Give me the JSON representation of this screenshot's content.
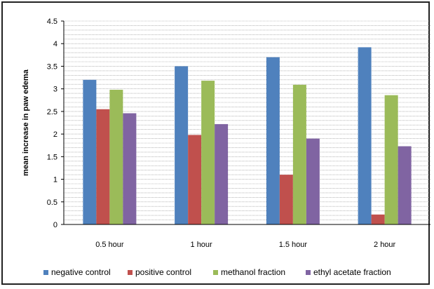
{
  "chart_data": {
    "type": "bar",
    "title": "",
    "xlabel": "",
    "ylabel": "mean increase in paw edema",
    "ylim": [
      0,
      4.5
    ],
    "yticks": [
      "0",
      "0.5",
      "1",
      "1.5",
      "2",
      "2.5",
      "3",
      "3.5",
      "4",
      "4.5"
    ],
    "grid": true,
    "legend": "bottom",
    "categories": [
      "0.5 hour",
      "1 hour",
      "1.5 hour",
      "2 hour"
    ],
    "series": [
      {
        "name": "negative control",
        "color": "#4f81bd",
        "values": [
          3.2,
          3.5,
          3.7,
          3.92
        ]
      },
      {
        "name": "positive control",
        "color": "#c0504d",
        "values": [
          2.55,
          1.98,
          1.1,
          0.22
        ]
      },
      {
        "name": "methanol fraction",
        "color": "#9bbb59",
        "values": [
          2.98,
          3.18,
          3.09,
          2.86
        ]
      },
      {
        "name": "ethyl acetate fraction",
        "color": "#8064a2",
        "values": [
          2.46,
          2.22,
          1.9,
          1.73
        ]
      }
    ]
  }
}
